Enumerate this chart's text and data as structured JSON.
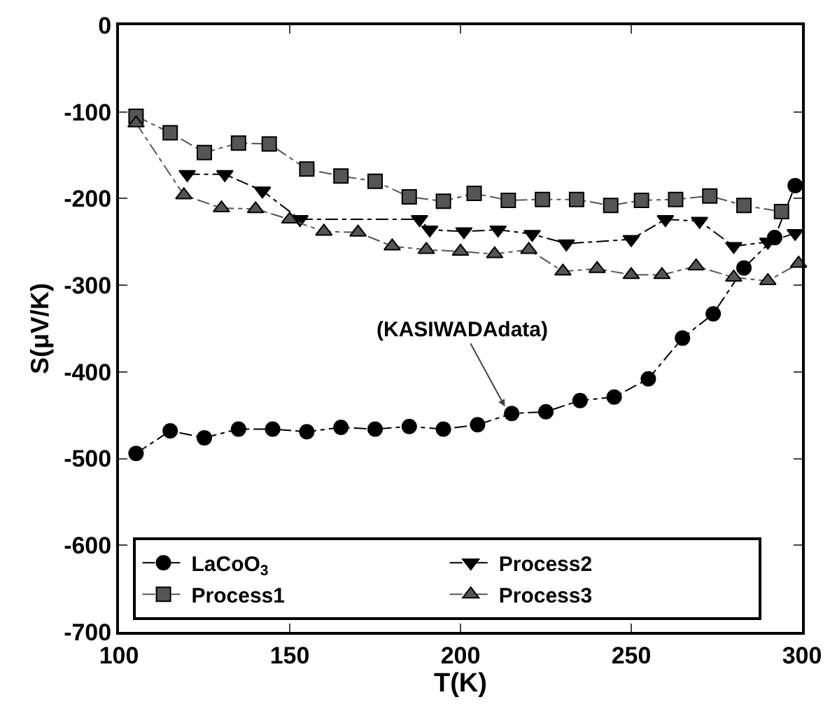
{
  "chart_data": {
    "type": "line",
    "xlabel": "T(K)",
    "ylabel": "S(μV/K)",
    "xlim": [
      100,
      300
    ],
    "xticks": [
      100,
      150,
      200,
      250,
      300
    ],
    "ylim": [
      -700,
      0
    ],
    "yticks": [
      0,
      -100,
      -200,
      -300,
      -400,
      -500,
      -600,
      -700
    ],
    "grid": false,
    "legend": "bottom left",
    "line_style": "dashed",
    "annotations": [
      {
        "text": "(KASIWADAdata)",
        "x": 213,
        "y": -440
      }
    ],
    "series": [
      {
        "name": "LaCoO$_{3}$",
        "color": "#000000",
        "marker": "circle",
        "x": [
          105,
          115,
          125,
          135,
          145,
          155,
          165,
          175,
          185,
          195,
          205,
          215,
          225,
          235,
          245,
          255,
          265,
          274,
          283,
          292,
          298
        ],
        "values": [
          -494,
          -468,
          -476,
          -466,
          -466,
          -469,
          -464,
          -466,
          -463,
          -466,
          -461,
          -448,
          -446,
          -433,
          -429,
          -408,
          -361,
          -333,
          -280,
          -245,
          -185
        ]
      },
      {
        "name": "Process2",
        "color": "#000000",
        "marker": "triangle-down",
        "x": [
          120,
          131,
          142,
          153,
          188,
          191,
          201,
          211,
          221,
          231,
          250,
          260,
          270,
          280,
          290,
          298
        ],
        "values": [
          -172,
          -172,
          -191,
          -224,
          -224,
          -236,
          -238,
          -236,
          -241,
          -252,
          -247,
          -224,
          -226,
          -255,
          -250,
          -240
        ]
      },
      {
        "name": "Process1",
        "color": "#555555",
        "marker": "square",
        "x": [
          105,
          115,
          125,
          135,
          144,
          155,
          165,
          175,
          185,
          195,
          204,
          214,
          224,
          234,
          244,
          253,
          263,
          273,
          283,
          294
        ],
        "values": [
          -105,
          -124,
          -147,
          -136,
          -137,
          -166,
          -174,
          -180,
          -198,
          -203,
          -194,
          -202,
          -201,
          -201,
          -208,
          -202,
          -201,
          -197,
          -208,
          -215
        ]
      },
      {
        "name": "Process3",
        "color": "#555555",
        "marker": "triangle",
        "x": [
          105,
          119,
          130,
          140,
          150,
          160,
          170,
          180,
          190,
          200,
          210,
          220,
          230,
          240,
          250,
          259,
          269,
          280,
          290,
          299
        ],
        "values": [
          -113,
          -196,
          -211,
          -212,
          -224,
          -238,
          -239,
          -255,
          -259,
          -261,
          -264,
          -259,
          -284,
          -281,
          -288,
          -288,
          -278,
          -291,
          -295,
          -275
        ]
      }
    ]
  }
}
